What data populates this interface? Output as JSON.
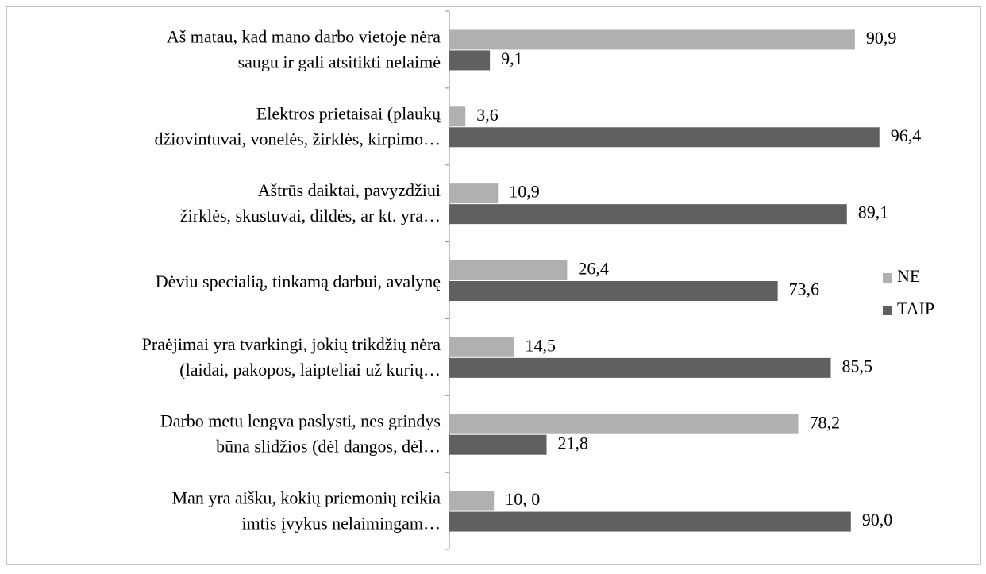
{
  "chart_data": {
    "type": "hbar",
    "categories": [
      [
        "Aš matau, kad mano darbo vietoje nėra",
        "saugu ir gali atsitikti nelaimė"
      ],
      [
        "Elektros prietaisai (plaukų",
        "džiovintuvai, vonelės, žirklės, kirpimo…"
      ],
      [
        "Aštrūs daiktai, pavyzdžiui",
        "žirklės, skustuvai, dildės, ar kt. yra…"
      ],
      [
        "Dėviu specialią, tinkamą darbui, avalynę"
      ],
      [
        "Praėjimai yra tvarkingi, jokių trikdžių nėra",
        "(laidai, pakopos, laipteliai už kurių…"
      ],
      [
        "Darbo metu lengva paslysti, nes grindys",
        "būna slidžios (dėl dangos, dėl…"
      ],
      [
        "Man yra aišku, kokių priemonių reikia",
        "imtis įvykus nelaimingam…"
      ]
    ],
    "series": [
      {
        "name": "NE",
        "color": "#b0b0b0",
        "values": [
          90.9,
          3.6,
          10.9,
          26.4,
          14.5,
          78.2,
          10.0
        ],
        "value_labels": [
          "90,9",
          "3,6",
          "10,9",
          "26,4",
          "14,5",
          "78,2",
          "10, 0"
        ]
      },
      {
        "name": "TAIP",
        "color": "#606060",
        "values": [
          9.1,
          96.4,
          89.1,
          73.6,
          85.5,
          21.8,
          90.0
        ],
        "value_labels": [
          "9,1",
          "96,4",
          "89,1",
          "73,6",
          "85,5",
          "21,8",
          "90,0"
        ]
      }
    ],
    "legend": "right"
  }
}
